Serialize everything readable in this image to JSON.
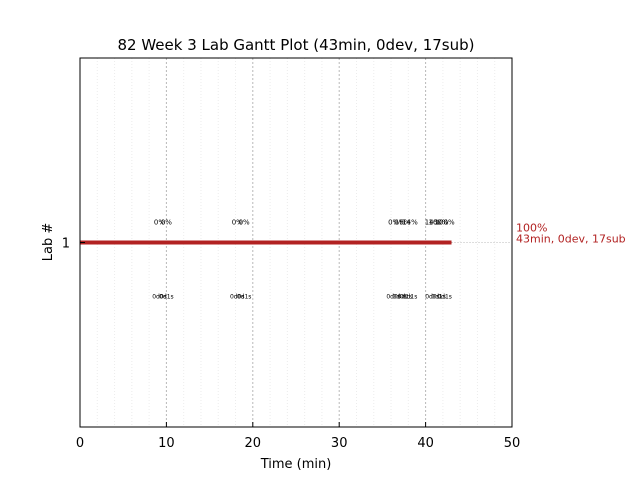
{
  "chart_data": {
    "type": "gantt",
    "title": "82 Week 3 Lab Gantt Plot (43min, 0dev, 17sub)",
    "xlabel": "Time (min)",
    "ylabel": "Lab #",
    "xlim": [
      0,
      50
    ],
    "ylim": [
      0,
      2
    ],
    "x_ticks": [
      0,
      10,
      20,
      30,
      40,
      50
    ],
    "y_ticks": [
      1
    ],
    "grid": true,
    "bar_color": "#b22222",
    "bars": [
      {
        "lab": 1,
        "start": 0,
        "end": 43,
        "label_pct": "100%",
        "label_detail": "43min, 0dev, 17sub"
      }
    ],
    "submission_annotations": [
      {
        "x": 9.2,
        "above": "0%",
        "below": "0d0s"
      },
      {
        "x": 10.0,
        "above": "0%",
        "below": "0d1s"
      },
      {
        "x": 18.2,
        "above": "0%",
        "below": "0d0s"
      },
      {
        "x": 19.0,
        "above": "0%",
        "below": "0d1s"
      },
      {
        "x": 36.3,
        "above": "0%",
        "below": "0d0s"
      },
      {
        "x": 37.0,
        "above": "0%",
        "below": "0d0s"
      },
      {
        "x": 37.6,
        "above": "6%",
        "below": "0d1s"
      },
      {
        "x": 38.2,
        "above": "14%",
        "below": "0d1s"
      },
      {
        "x": 40.8,
        "above": "14%",
        "below": "0d0s"
      },
      {
        "x": 41.5,
        "above": "100%",
        "below": "0d1s"
      },
      {
        "x": 42.2,
        "above": "100%",
        "below": "0d1s"
      }
    ]
  }
}
